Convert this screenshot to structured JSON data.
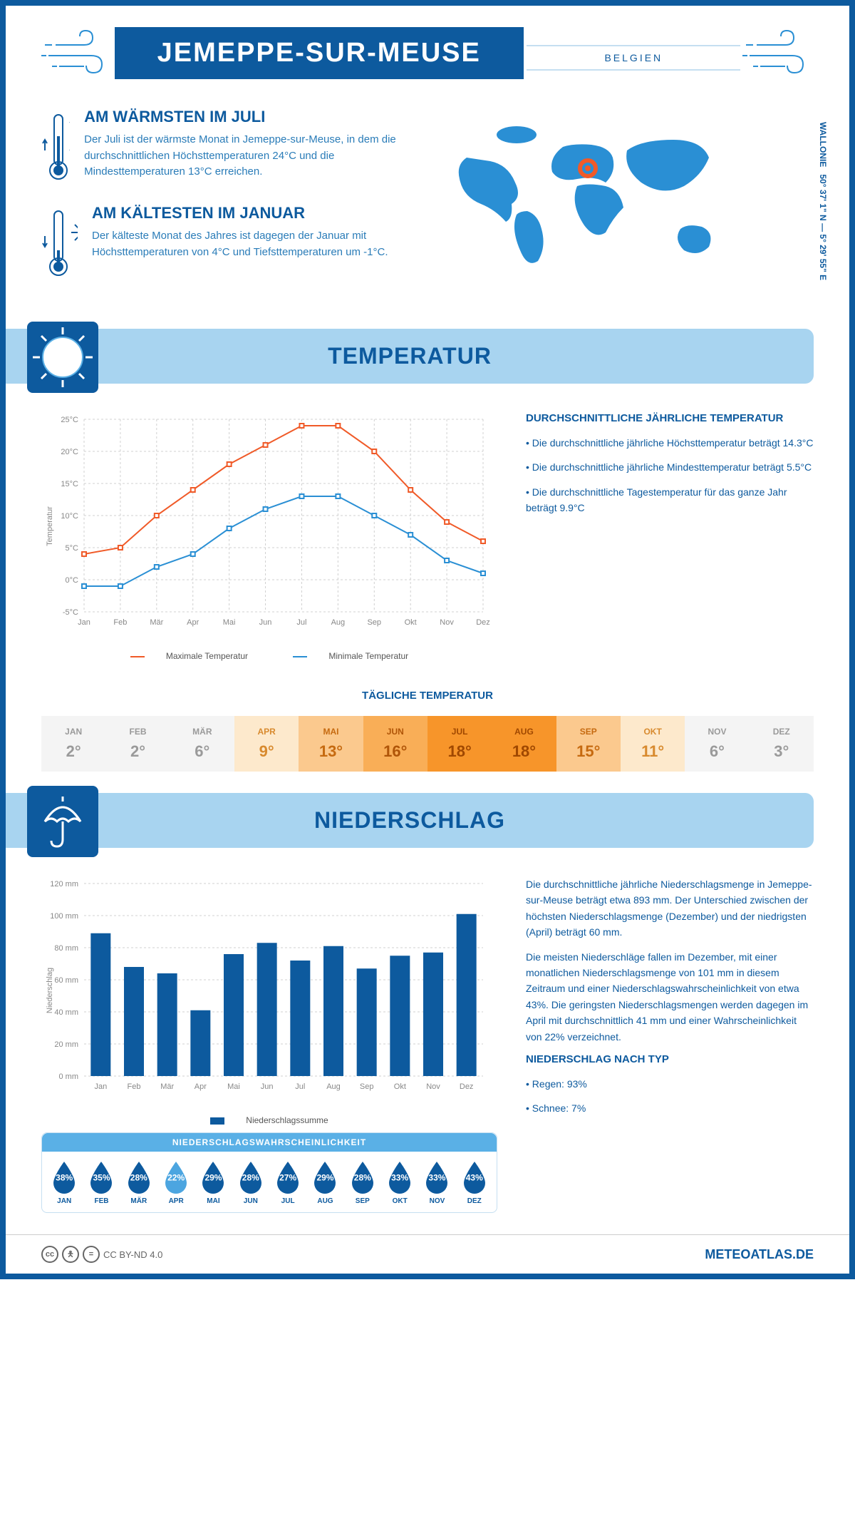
{
  "header": {
    "title": "JEMEPPE-SUR-MEUSE",
    "subtitle": "BELGIEN"
  },
  "coords": {
    "region": "WALLONIE",
    "lat": "50° 37' 1\" N",
    "lon": "5° 29' 55\" E"
  },
  "intro": {
    "warm": {
      "title": "AM WÄRMSTEN IM JULI",
      "text": "Der Juli ist der wärmste Monat in Jemeppe-sur-Meuse, in dem die durchschnittlichen Höchsttemperaturen 24°C und die Mindesttemperaturen 13°C erreichen."
    },
    "cold": {
      "title": "AM KÄLTESTEN IM JANUAR",
      "text": "Der kälteste Monat des Jahres ist dagegen der Januar mit Höchsttemperaturen von 4°C und Tiefsttemperaturen um -1°C."
    }
  },
  "temp_section": {
    "title": "TEMPERATUR",
    "chart": {
      "type": "line",
      "months": [
        "Jan",
        "Feb",
        "Mär",
        "Apr",
        "Mai",
        "Jun",
        "Jul",
        "Aug",
        "Sep",
        "Okt",
        "Nov",
        "Dez"
      ],
      "max_series": {
        "label": "Maximale Temperatur",
        "color": "#f05a28",
        "values": [
          4,
          5,
          10,
          14,
          18,
          21,
          24,
          24,
          20,
          14,
          9,
          6
        ]
      },
      "min_series": {
        "label": "Minimale Temperatur",
        "color": "#2a8fd4",
        "values": [
          -1,
          -1,
          2,
          4,
          8,
          11,
          13,
          13,
          10,
          7,
          3,
          1
        ]
      },
      "ylabel": "Temperatur",
      "ylim": [
        -5,
        25
      ],
      "ytick_step": 5,
      "grid_color": "#d0d0d0",
      "background": "#ffffff"
    },
    "text_title": "DURCHSCHNITTLICHE JÄHRLICHE TEMPERATUR",
    "bullets": [
      "• Die durchschnittliche jährliche Höchsttemperatur beträgt 14.3°C",
      "• Die durchschnittliche jährliche Mindesttemperatur beträgt 5.5°C",
      "• Die durchschnittliche Tagestemperatur für das ganze Jahr beträgt 9.9°C"
    ],
    "daily_title": "TÄGLICHE TEMPERATUR",
    "daily_table": {
      "months": [
        "JAN",
        "FEB",
        "MÄR",
        "APR",
        "MAI",
        "JUN",
        "JUL",
        "AUG",
        "SEP",
        "OKT",
        "NOV",
        "DEZ"
      ],
      "values": [
        "2°",
        "2°",
        "6°",
        "9°",
        "13°",
        "16°",
        "18°",
        "18°",
        "15°",
        "11°",
        "6°",
        "3°"
      ],
      "bg_colors": [
        "#f4f4f4",
        "#f4f4f4",
        "#f4f4f4",
        "#fde9cc",
        "#fbc98e",
        "#f9ae57",
        "#f7952a",
        "#f7952a",
        "#fbc98e",
        "#fde9cc",
        "#f4f4f4",
        "#f4f4f4"
      ],
      "text_colors": [
        "#9a9a9a",
        "#9a9a9a",
        "#9a9a9a",
        "#d88a2e",
        "#c66a10",
        "#b05508",
        "#a04800",
        "#a04800",
        "#c66a10",
        "#d88a2e",
        "#9a9a9a",
        "#9a9a9a"
      ]
    }
  },
  "precip_section": {
    "title": "NIEDERSCHLAG",
    "chart": {
      "type": "bar",
      "months": [
        "Jan",
        "Feb",
        "Mär",
        "Apr",
        "Mai",
        "Jun",
        "Jul",
        "Aug",
        "Sep",
        "Okt",
        "Nov",
        "Dez"
      ],
      "values": [
        89,
        68,
        64,
        41,
        76,
        83,
        72,
        81,
        67,
        75,
        77,
        101
      ],
      "color": "#0d5a9e",
      "ylabel": "Niederschlag",
      "ylim": [
        0,
        120
      ],
      "ytick_step": 20,
      "legend": "Niederschlagssumme",
      "grid_color": "#d0d0d0"
    },
    "text1": "Die durchschnittliche jährliche Niederschlagsmenge in Jemeppe-sur-Meuse beträgt etwa 893 mm. Der Unterschied zwischen der höchsten Niederschlagsmenge (Dezember) und der niedrigsten (April) beträgt 60 mm.",
    "text2": "Die meisten Niederschläge fallen im Dezember, mit einer monatlichen Niederschlagsmenge von 101 mm in diesem Zeitraum und einer Niederschlagswahrscheinlichkeit von etwa 43%. Die geringsten Niederschlagsmengen werden dagegen im April mit durchschnittlich 41 mm und einer Wahrscheinlichkeit von 22% verzeichnet.",
    "type_title": "NIEDERSCHLAG NACH TYP",
    "type_bullets": [
      "• Regen: 93%",
      "• Schnee: 7%"
    ],
    "prob": {
      "title": "NIEDERSCHLAGSWAHRSCHEINLICHKEIT",
      "months": [
        "JAN",
        "FEB",
        "MÄR",
        "APR",
        "MAI",
        "JUN",
        "JUL",
        "AUG",
        "SEP",
        "OKT",
        "NOV",
        "DEZ"
      ],
      "values": [
        "38%",
        "35%",
        "28%",
        "22%",
        "29%",
        "28%",
        "27%",
        "29%",
        "28%",
        "33%",
        "33%",
        "43%"
      ],
      "colors": [
        "#0d5a9e",
        "#0d5a9e",
        "#0d5a9e",
        "#4ca5e0",
        "#0d5a9e",
        "#0d5a9e",
        "#0d5a9e",
        "#0d5a9e",
        "#0d5a9e",
        "#0d5a9e",
        "#0d5a9e",
        "#0d5a9e"
      ]
    }
  },
  "footer": {
    "license": "CC BY-ND 4.0",
    "brand": "METEOATLAS.DE"
  },
  "colors": {
    "primary": "#0d5a9e",
    "light_blue": "#a8d4f0",
    "accent_blue": "#2a8fd4"
  }
}
